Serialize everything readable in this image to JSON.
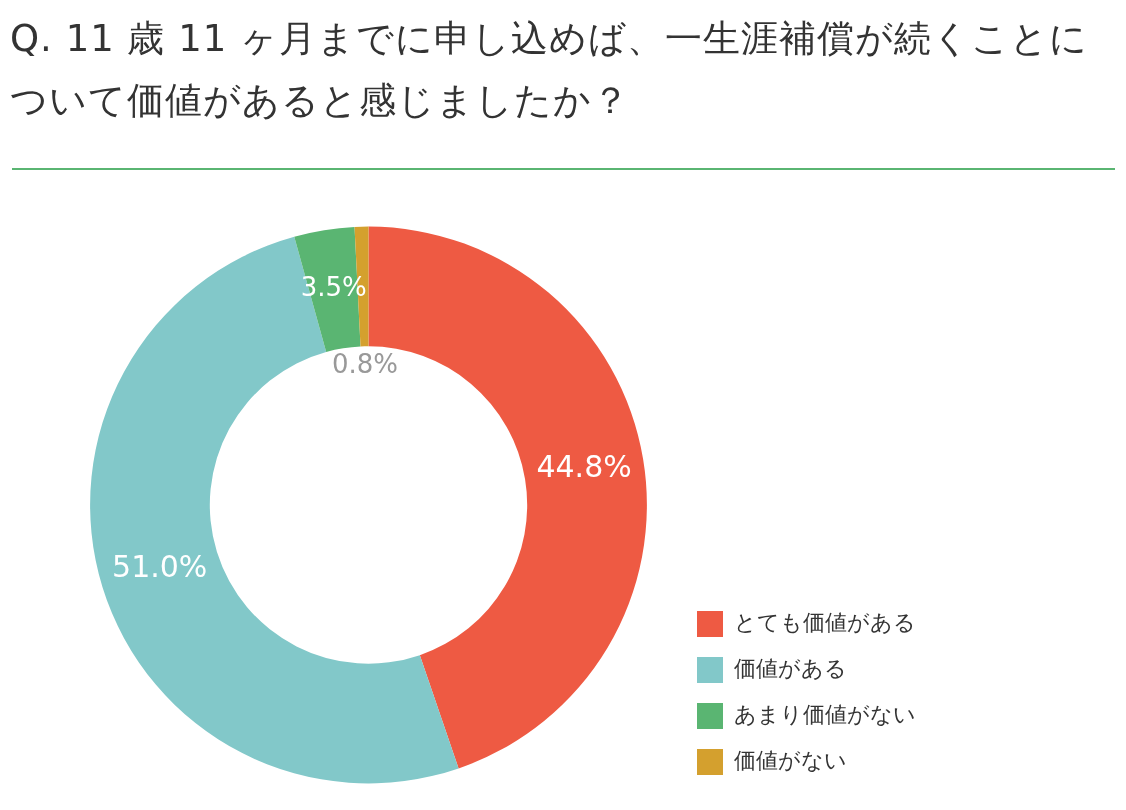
{
  "chart_data": {
    "type": "donut",
    "title": "Q. 11 歳 11 ヶ月までに申し込めば、一生涯補償が続くことについて価値があると感じましたか？",
    "categories": [
      "とても価値がある",
      "価値がある",
      "あまり価値がない",
      "価値がない"
    ],
    "values": [
      44.8,
      51.0,
      3.5,
      0.8
    ],
    "value_labels": [
      "44.8%",
      "51.0%",
      "3.5%",
      "0.8%"
    ],
    "colors": [
      "#ee5a43",
      "#82c8c9",
      "#5ab572",
      "#d4a02e"
    ],
    "legend": "bottom right"
  }
}
